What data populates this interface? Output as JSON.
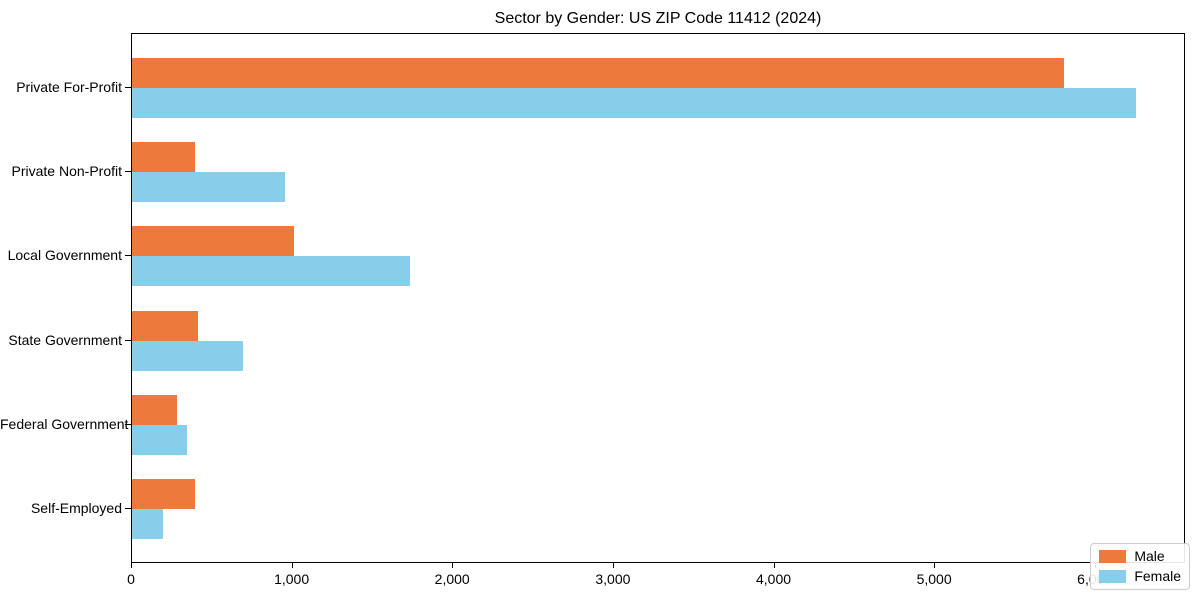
{
  "title": "Sector by Gender: US ZIP Code 11412 (2024)",
  "colors": {
    "male": "#ec7a3c",
    "female": "#87ceeb",
    "axis": "#000000",
    "legend_border": "#cccccc",
    "background": "#ffffff"
  },
  "chart_data": {
    "type": "bar",
    "orientation": "horizontal",
    "title": "Sector by Gender: US ZIP Code 11412 (2024)",
    "categories": [
      "Private For-Profit",
      "Private Non-Profit",
      "Local Government",
      "State Government",
      "Federal Government",
      "Self-Employed"
    ],
    "series": [
      {
        "name": "Male",
        "color": "#ec7a3c",
        "values": [
          5800,
          390,
          1010,
          410,
          280,
          390
        ]
      },
      {
        "name": "Female",
        "color": "#87ceeb",
        "values": [
          6250,
          950,
          1730,
          690,
          340,
          190
        ]
      }
    ],
    "xlabel": "",
    "ylabel": "",
    "xlim": [
      0,
      6562
    ],
    "x_ticks": [
      0,
      1000,
      2000,
      3000,
      4000,
      5000,
      6000
    ],
    "x_tick_labels": [
      "0",
      "1,000",
      "2,000",
      "3,000",
      "4,000",
      "5,000",
      "6,000"
    ],
    "grid": false,
    "legend": {
      "position": "lower right",
      "entries": [
        "Male",
        "Female"
      ]
    }
  }
}
